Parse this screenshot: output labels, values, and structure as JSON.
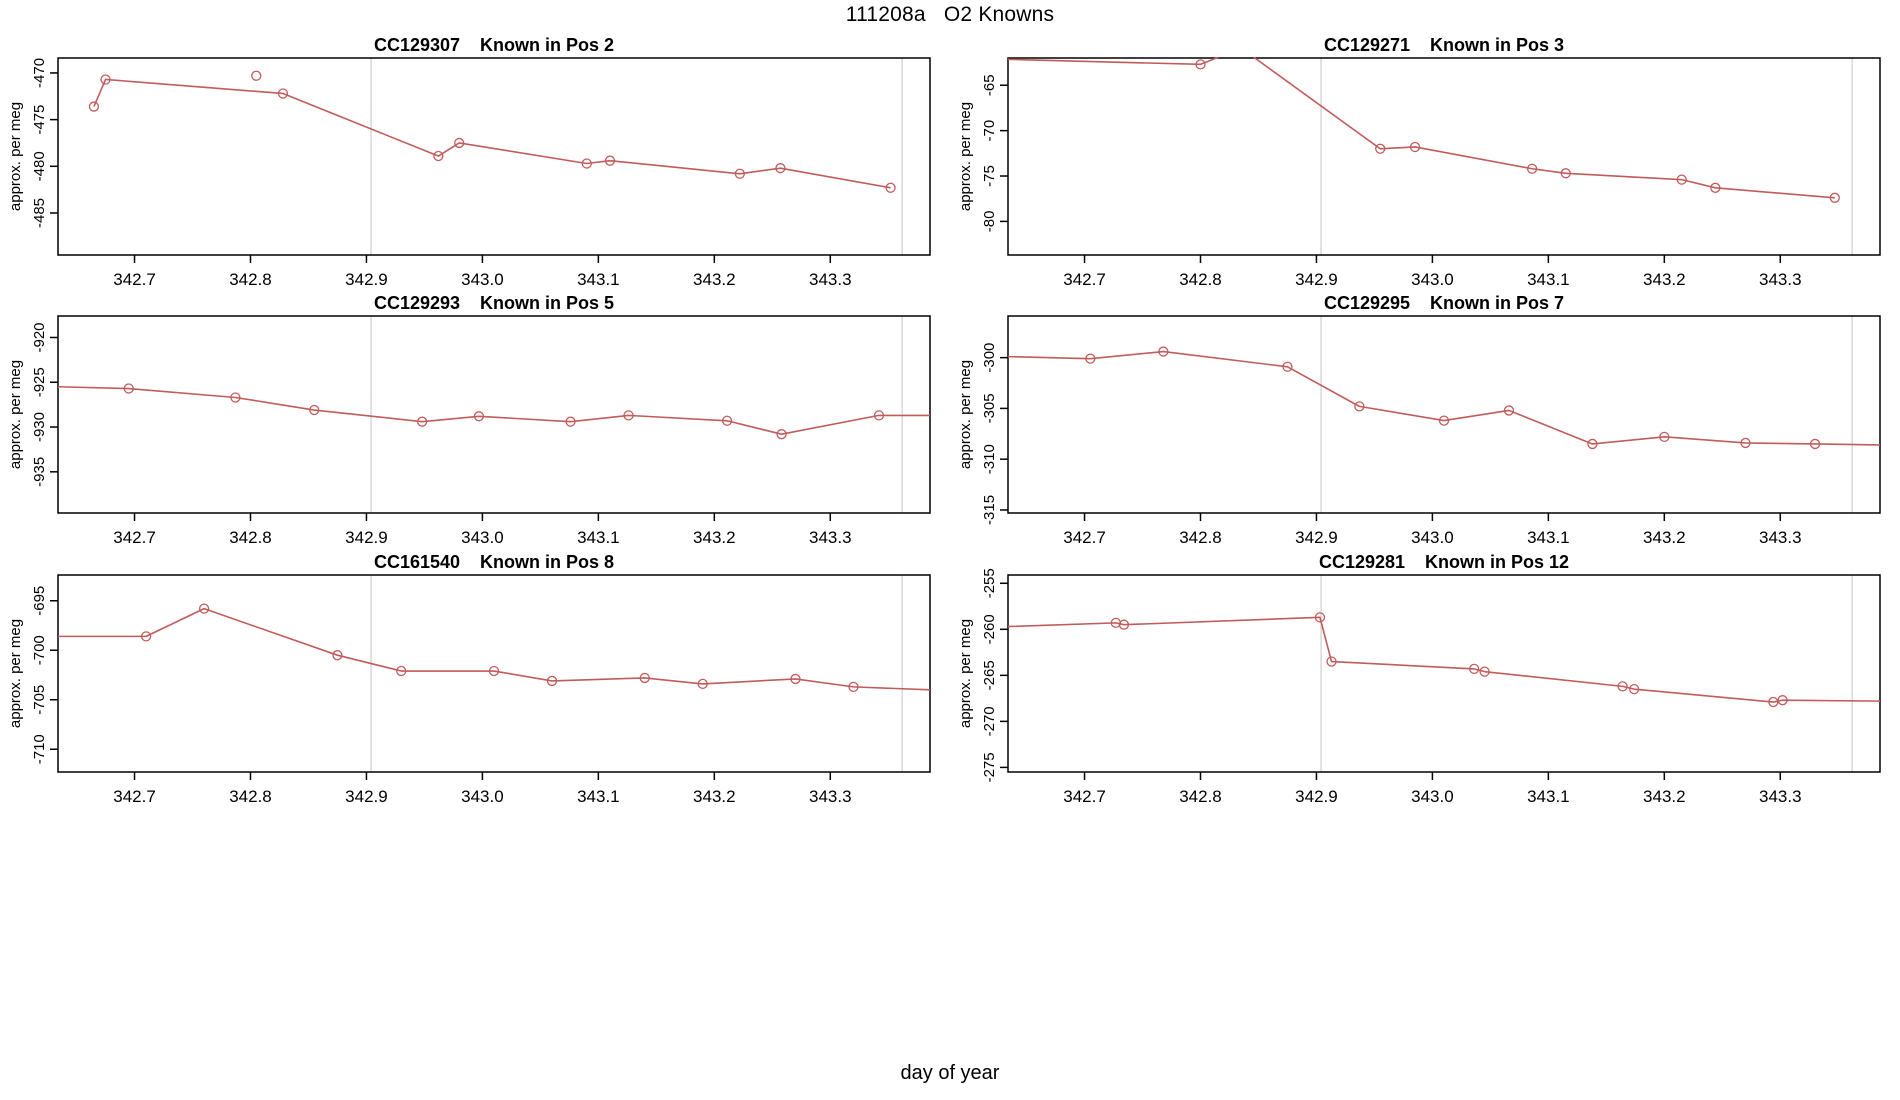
{
  "figure": {
    "title": "111208a   O2 Knowns"
  },
  "chart_data": {
    "type": "line",
    "shared": {
      "xlabel": "day of year",
      "ylabel": "approx. per meg",
      "xlim": [
        342.634,
        343.386
      ],
      "xticks": [
        342.7,
        342.8,
        342.9,
        343.0,
        343.1,
        343.2,
        343.3
      ],
      "vlines": [
        342.904,
        343.362
      ],
      "grid": "off",
      "legend": "none",
      "series_color": "#C25B5B",
      "vline_color": "#D8D8D8",
      "frame_color": "#000000"
    },
    "panels": [
      {
        "id": "CC129307",
        "title": "CC129307    Known in Pos 2",
        "yticks": [
          -470,
          -475,
          -480,
          -485
        ],
        "ylim": [
          -489.5,
          -468.4
        ],
        "line": [
          [
            342.665,
            -473.6
          ],
          [
            342.675,
            -470.7
          ],
          [
            342.828,
            -472.2
          ],
          [
            342.962,
            -478.9
          ],
          [
            342.98,
            -477.5
          ],
          [
            343.09,
            -479.7
          ],
          [
            343.11,
            -479.4
          ],
          [
            343.222,
            -480.8
          ],
          [
            343.257,
            -480.2
          ],
          [
            343.352,
            -482.3
          ]
        ],
        "markers": [
          [
            342.665,
            -473.6
          ],
          [
            342.675,
            -470.7
          ],
          [
            342.805,
            -470.3
          ],
          [
            342.828,
            -472.2
          ],
          [
            342.962,
            -478.9
          ],
          [
            342.98,
            -477.5
          ],
          [
            343.09,
            -479.7
          ],
          [
            343.11,
            -479.4
          ],
          [
            343.222,
            -480.8
          ],
          [
            343.257,
            -480.2
          ],
          [
            343.352,
            -482.3
          ]
        ]
      },
      {
        "id": "CC129271",
        "title": "CC129271    Known in Pos 3",
        "yticks": [
          -65,
          -70,
          -75,
          -80
        ],
        "ylim": [
          -83.7,
          -62.0
        ],
        "line": [
          [
            342.634,
            -62.15
          ],
          [
            342.8,
            -62.7
          ],
          [
            342.835,
            -60.9
          ],
          [
            342.955,
            -72.0
          ],
          [
            342.985,
            -71.8
          ],
          [
            343.086,
            -74.2
          ],
          [
            343.115,
            -74.7
          ],
          [
            343.215,
            -75.4
          ],
          [
            343.244,
            -76.3
          ],
          [
            343.347,
            -77.4
          ]
        ],
        "markers": [
          [
            342.8,
            -62.7
          ],
          [
            342.955,
            -72.0
          ],
          [
            342.985,
            -71.8
          ],
          [
            343.086,
            -74.2
          ],
          [
            343.115,
            -74.7
          ],
          [
            343.215,
            -75.4
          ],
          [
            343.244,
            -76.3
          ],
          [
            343.347,
            -77.4
          ]
        ]
      },
      {
        "id": "CC129293",
        "title": "CC129293    Known in Pos 5",
        "yticks": [
          -920,
          -925,
          -930,
          -935
        ],
        "ylim": [
          -939.6,
          -917.6
        ],
        "line": [
          [
            342.634,
            -925.5
          ],
          [
            342.695,
            -925.7
          ],
          [
            342.787,
            -926.7
          ],
          [
            342.855,
            -928.1
          ],
          [
            342.948,
            -929.4
          ],
          [
            342.997,
            -928.8
          ],
          [
            343.076,
            -929.4
          ],
          [
            343.126,
            -928.7
          ],
          [
            343.211,
            -929.3
          ],
          [
            343.258,
            -930.8
          ],
          [
            343.342,
            -928.7
          ],
          [
            343.386,
            -928.7
          ]
        ],
        "markers": [
          [
            342.695,
            -925.7
          ],
          [
            342.787,
            -926.7
          ],
          [
            342.855,
            -928.1
          ],
          [
            342.948,
            -929.4
          ],
          [
            342.997,
            -928.8
          ],
          [
            343.076,
            -929.4
          ],
          [
            343.126,
            -928.7
          ],
          [
            343.211,
            -929.3
          ],
          [
            343.258,
            -930.8
          ],
          [
            343.342,
            -928.7
          ]
        ]
      },
      {
        "id": "CC129295",
        "title": "CC129295    Known in Pos 7",
        "yticks": [
          -300,
          -305,
          -310,
          -315
        ],
        "ylim": [
          -315.3,
          -295.9
        ],
        "line": [
          [
            342.634,
            -299.9
          ],
          [
            342.705,
            -300.1
          ],
          [
            342.768,
            -299.4
          ],
          [
            342.875,
            -300.9
          ],
          [
            342.937,
            -304.8
          ],
          [
            343.01,
            -306.2
          ],
          [
            343.066,
            -305.2
          ],
          [
            343.138,
            -308.5
          ],
          [
            343.2,
            -307.8
          ],
          [
            343.27,
            -308.4
          ],
          [
            343.33,
            -308.5
          ],
          [
            343.386,
            -308.6
          ]
        ],
        "markers": [
          [
            342.705,
            -300.1
          ],
          [
            342.768,
            -299.4
          ],
          [
            342.875,
            -300.9
          ],
          [
            342.937,
            -304.8
          ],
          [
            343.01,
            -306.2
          ],
          [
            343.066,
            -305.2
          ],
          [
            343.138,
            -308.5
          ],
          [
            343.2,
            -307.8
          ],
          [
            343.27,
            -308.4
          ],
          [
            343.33,
            -308.5
          ]
        ]
      },
      {
        "id": "CC161540",
        "title": "CC161540    Known in Pos 8",
        "yticks": [
          -695,
          -700,
          -705,
          -710
        ],
        "ylim": [
          -712.3,
          -692.4
        ],
        "line": [
          [
            342.634,
            -698.6
          ],
          [
            342.71,
            -698.6
          ],
          [
            342.76,
            -695.8
          ],
          [
            342.875,
            -700.5
          ],
          [
            342.93,
            -702.1
          ],
          [
            343.01,
            -702.1
          ],
          [
            343.06,
            -703.1
          ],
          [
            343.14,
            -702.8
          ],
          [
            343.19,
            -703.4
          ],
          [
            343.27,
            -702.9
          ],
          [
            343.32,
            -703.7
          ],
          [
            343.386,
            -704.0
          ]
        ],
        "markers": [
          [
            342.71,
            -698.6
          ],
          [
            342.76,
            -695.8
          ],
          [
            342.875,
            -700.5
          ],
          [
            342.93,
            -702.1
          ],
          [
            343.01,
            -702.1
          ],
          [
            343.06,
            -703.1
          ],
          [
            343.14,
            -702.8
          ],
          [
            343.19,
            -703.4
          ],
          [
            343.27,
            -702.9
          ],
          [
            343.32,
            -703.7
          ]
        ]
      },
      {
        "id": "CC129281",
        "title": "CC129281    Known in Pos 12",
        "yticks": [
          -255,
          -260,
          -265,
          -270,
          -275
        ],
        "ylim": [
          -275.5,
          -254.1
        ],
        "line": [
          [
            342.634,
            -259.7
          ],
          [
            342.727,
            -259.3
          ],
          [
            342.734,
            -259.5
          ],
          [
            342.903,
            -258.7
          ],
          [
            342.913,
            -263.5
          ],
          [
            343.036,
            -264.3
          ],
          [
            343.045,
            -264.6
          ],
          [
            343.164,
            -266.2
          ],
          [
            343.174,
            -266.5
          ],
          [
            343.294,
            -267.9
          ],
          [
            343.302,
            -267.7
          ],
          [
            343.386,
            -267.8
          ]
        ],
        "markers": [
          [
            342.727,
            -259.3
          ],
          [
            342.734,
            -259.5
          ],
          [
            342.903,
            -258.7
          ],
          [
            342.913,
            -263.5
          ],
          [
            343.036,
            -264.3
          ],
          [
            343.045,
            -264.6
          ],
          [
            343.164,
            -266.2
          ],
          [
            343.174,
            -266.5
          ],
          [
            343.294,
            -267.9
          ],
          [
            343.302,
            -267.7
          ]
        ]
      }
    ]
  }
}
